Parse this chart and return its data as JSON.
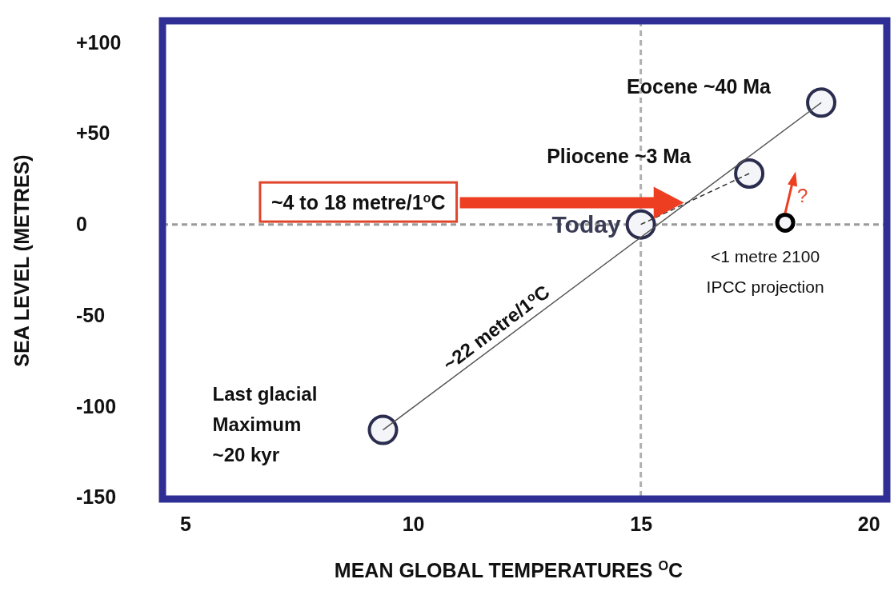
{
  "chart_data": {
    "type": "scatter",
    "xlabel": "MEAN GLOBAL TEMPERATURES $^{O}$C",
    "ylabel": "SEA LEVEL (METRES)",
    "xlim": [
      4.5,
      20.4
    ],
    "ylim": [
      -151,
      112
    ],
    "xticks": [
      5,
      10,
      15,
      20
    ],
    "yticks": [
      {
        "value": 100,
        "label": "+100"
      },
      {
        "value": 50,
        "label": "+50"
      },
      0,
      -50,
      -100,
      -150
    ],
    "grid": false,
    "series": [
      {
        "type": "line",
        "color": "#555555",
        "line_style": "solid",
        "x": [
          9.34,
          18.96
        ],
        "values": [
          -113,
          67
        ]
      },
      {
        "type": "line",
        "color": "#333333",
        "line_style": "dashed",
        "x": [
          15,
          17.38
        ],
        "values": [
          0,
          28
        ]
      },
      {
        "color": "#2b2d4f",
        "marker": "circle",
        "x": [
          9.34,
          15,
          17.38,
          18.96
        ],
        "values": [
          -113,
          0,
          28,
          67
        ]
      },
      {
        "color": "#000000",
        "marker": "circle",
        "x": [
          18.17
        ],
        "values": [
          1
        ]
      }
    ],
    "ref_lines": [
      {
        "axis": "y",
        "value": 0,
        "color": "#9a9a9a",
        "line_style": "dashed"
      },
      {
        "axis": "x",
        "value": 15,
        "color": "#b0b0b0",
        "line_style": "dashed"
      }
    ],
    "annotations": [
      {
        "text": "Eocene ~40 Ma",
        "x": 18.96,
        "y": 67
      },
      {
        "text": "Pliocene ~3 Ma",
        "x": 17.38,
        "y": 28
      },
      {
        "text": "Today",
        "x": 15,
        "y": 0
      },
      {
        "text": "<1 metre 2100\nIPCC projection",
        "x": 18.17,
        "y": 1
      },
      "Last glacial\nMaximum\n~20 kyr",
      {
        "text": "~22 metre/1$^{o}$C",
        "x": 12.0,
        "y": -63
      },
      "?",
      "~4 to 18 metre/1$^{o}$C"
    ]
  }
}
